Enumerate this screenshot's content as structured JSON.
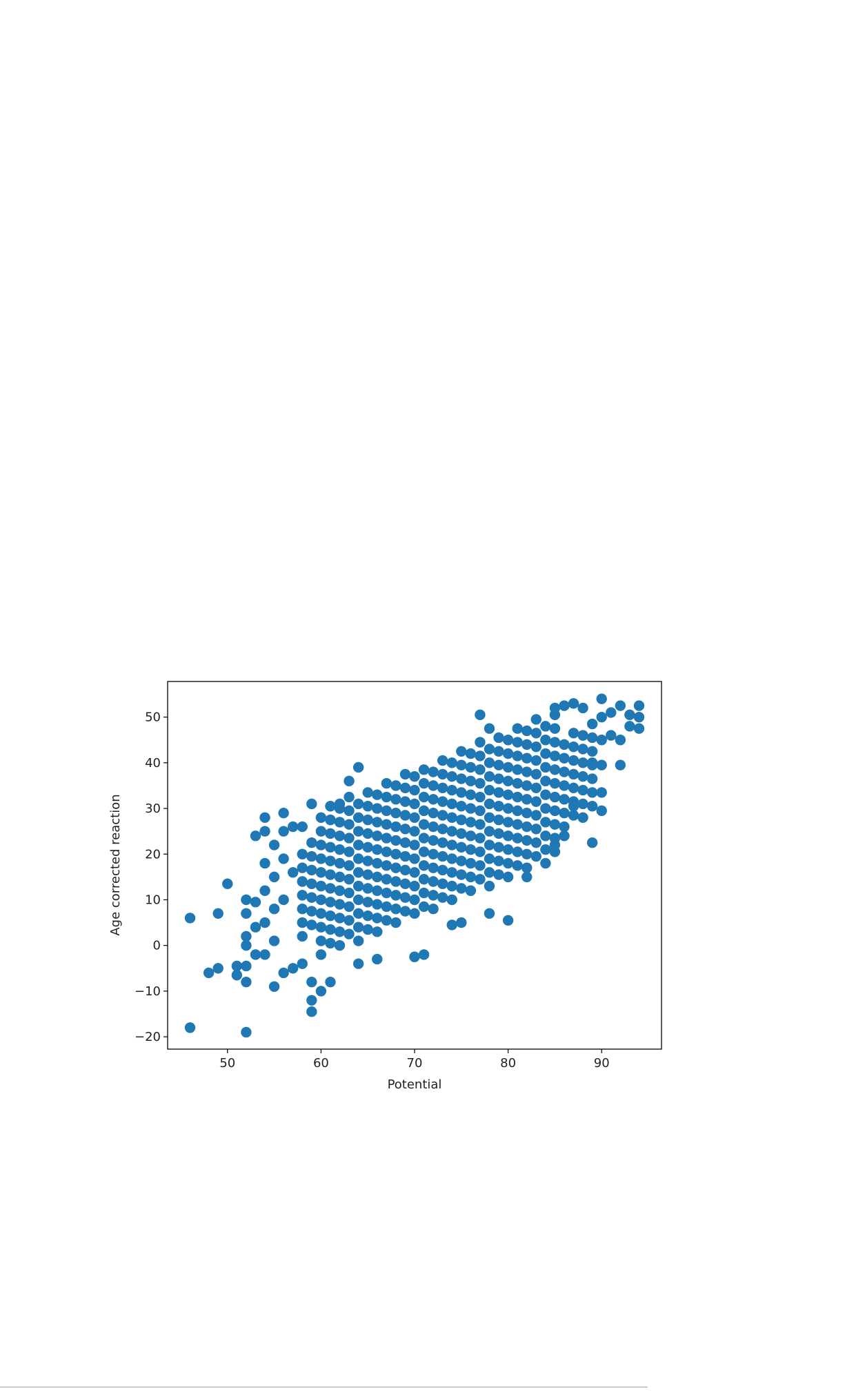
{
  "chart_data": {
    "type": "scatter",
    "xlabel": "Potential",
    "ylabel": "Age corrected reaction",
    "color": "#1f77b4",
    "xlim": [
      43.6,
      96.4
    ],
    "ylim": [
      -22.7,
      57.8
    ],
    "xticks": [
      50,
      60,
      70,
      80,
      90
    ],
    "yticks": [
      {
        "value": -20,
        "label": "−20"
      },
      {
        "value": -10,
        "label": "−10"
      },
      0,
      10,
      20,
      30,
      40,
      50
    ],
    "x": [
      58,
      58,
      58,
      58,
      58,
      58,
      58,
      59,
      59,
      59,
      59,
      59,
      59,
      59,
      60,
      60,
      60,
      60,
      60,
      60,
      60,
      60,
      60,
      60,
      60,
      61,
      61,
      61,
      61,
      61,
      61,
      61,
      61,
      61,
      61,
      61,
      62,
      62,
      62,
      62,
      62,
      62,
      62,
      62,
      62,
      62,
      62,
      63,
      63,
      63,
      63,
      63,
      63,
      63,
      63,
      63,
      63,
      63,
      64,
      64,
      64,
      64,
      64,
      64,
      64,
      64,
      64,
      64,
      64,
      65,
      65,
      65,
      65,
      65,
      65,
      65,
      65,
      65,
      65,
      65,
      66,
      66,
      66,
      66,
      66,
      66,
      66,
      66,
      66,
      66,
      66,
      67,
      67,
      67,
      67,
      67,
      67,
      67,
      67,
      67,
      67,
      67,
      68,
      68,
      68,
      68,
      68,
      68,
      68,
      68,
      68,
      68,
      68,
      69,
      69,
      69,
      69,
      69,
      69,
      69,
      69,
      69,
      69,
      69,
      70,
      70,
      70,
      70,
      70,
      70,
      70,
      70,
      70,
      70,
      70,
      71,
      71,
      71,
      71,
      71,
      71,
      71,
      71,
      71,
      71,
      71,
      72,
      72,
      72,
      72,
      72,
      72,
      72,
      72,
      72,
      72,
      72,
      73,
      73,
      73,
      73,
      73,
      73,
      73,
      73,
      73,
      73,
      73,
      74,
      74,
      74,
      74,
      74,
      74,
      74,
      74,
      74,
      74,
      74,
      75,
      75,
      75,
      75,
      75,
      75,
      75,
      75,
      75,
      75,
      75,
      76,
      76,
      76,
      76,
      76,
      76,
      76,
      76,
      76,
      76,
      76,
      77,
      77,
      77,
      77,
      77,
      77,
      77,
      77,
      77,
      77,
      77,
      78,
      78,
      78,
      78,
      78,
      78,
      78,
      78,
      78,
      78,
      78,
      79,
      79,
      79,
      79,
      79,
      79,
      79,
      79,
      79,
      79,
      79,
      80,
      80,
      80,
      80,
      80,
      80,
      80,
      80,
      80,
      80,
      80,
      81,
      81,
      81,
      81,
      81,
      81,
      81,
      81,
      81,
      81,
      81,
      82,
      82,
      82,
      82,
      82,
      82,
      82,
      82,
      82,
      82,
      82,
      83,
      83,
      83,
      83,
      83,
      83,
      83,
      83,
      83,
      83,
      83,
      84,
      84,
      84,
      84,
      84,
      84,
      84,
      84,
      84,
      84,
      84,
      85,
      85,
      85,
      85,
      85,
      85,
      85,
      85,
      85,
      85,
      85,
      86,
      86,
      86,
      86,
      86,
      86,
      86,
      87,
      87,
      87,
      87,
      87,
      87,
      87,
      88,
      88,
      88,
      88,
      88,
      88,
      88,
      89,
      89,
      89,
      89,
      89,
      89,
      89,
      46,
      46,
      48,
      49,
      49,
      50,
      51,
      51,
      52,
      52,
      52,
      52,
      52,
      52,
      52,
      53,
      53,
      53,
      53,
      54,
      54,
      54,
      54,
      54,
      54,
      55,
      55,
      55,
      55,
      55,
      56,
      56,
      56,
      56,
      56,
      57,
      57,
      57,
      58,
      58,
      59,
      59,
      59,
      59,
      60,
      61,
      62,
      63,
      64,
      64,
      66,
      70,
      71,
      74,
      75,
      77,
      78,
      78,
      80,
      82,
      85,
      86,
      87,
      89,
      90,
      90,
      90,
      90,
      90,
      90,
      91,
      91,
      92,
      92,
      92,
      93,
      93,
      94,
      94,
      94,
      88,
      87,
      86,
      85,
      89
    ],
    "values": [
      2,
      5,
      8,
      11,
      14,
      17,
      20,
      4.5,
      7.5,
      10.5,
      13.5,
      16.5,
      19.5,
      22.5,
      -2,
      1,
      4,
      7,
      10,
      13,
      16,
      19,
      22,
      25,
      28,
      0.5,
      3.5,
      6.5,
      9.5,
      12.5,
      15.5,
      18.5,
      21.5,
      24.5,
      27.5,
      30.5,
      0,
      3,
      6,
      9,
      12,
      15,
      18,
      21,
      24,
      27,
      30,
      2.5,
      5.5,
      8.5,
      11.5,
      14.5,
      17.5,
      20.5,
      23.5,
      26.5,
      29.5,
      32.5,
      1,
      4,
      7,
      10,
      13,
      16,
      19,
      22,
      25,
      28,
      31,
      3.5,
      6.5,
      9.5,
      12.5,
      15.5,
      18.5,
      21.5,
      24.5,
      27.5,
      30.5,
      33.5,
      3,
      6,
      9,
      12,
      15,
      18,
      21,
      24,
      27,
      30,
      33,
      5.5,
      8.5,
      11.5,
      14.5,
      17.5,
      20.5,
      23.5,
      26.5,
      29.5,
      32.5,
      35.5,
      5,
      8,
      11,
      14,
      17,
      20,
      23,
      26,
      29,
      32,
      35,
      7.5,
      10.5,
      13.5,
      16.5,
      19.5,
      22.5,
      25.5,
      28.5,
      31.5,
      34.5,
      37.5,
      7,
      10,
      13,
      16,
      19,
      22,
      25,
      28,
      31,
      34,
      37,
      8.5,
      11.5,
      14.5,
      17.5,
      20.5,
      23.5,
      26.5,
      29.5,
      32.5,
      35.5,
      38.5,
      8,
      11,
      14,
      17,
      20,
      23,
      26,
      29,
      32,
      35,
      38,
      10.5,
      13.5,
      16.5,
      19.5,
      22.5,
      25.5,
      28.5,
      31.5,
      34.5,
      37.5,
      40.5,
      10,
      13,
      16,
      19,
      22,
      25,
      28,
      31,
      34,
      37,
      40,
      12.5,
      15.5,
      18.5,
      21.5,
      24.5,
      27.5,
      30.5,
      33.5,
      36.5,
      39.5,
      42.5,
      12,
      15,
      18,
      21,
      24,
      27,
      30,
      33,
      36,
      39,
      42,
      14.5,
      17.5,
      20.5,
      23.5,
      26.5,
      29.5,
      32.5,
      35.5,
      38.5,
      41.5,
      44.5,
      13,
      16,
      19,
      22,
      25,
      28,
      31,
      34,
      37,
      40,
      43,
      15.5,
      18.5,
      21.5,
      24.5,
      27.5,
      30.5,
      33.5,
      36.5,
      39.5,
      42.5,
      45.5,
      15,
      18,
      21,
      24,
      27,
      30,
      33,
      36,
      39,
      42,
      45,
      17.5,
      20.5,
      23.5,
      26.5,
      29.5,
      32.5,
      35.5,
      38.5,
      41.5,
      44.5,
      47.5,
      17,
      20,
      23,
      26,
      29,
      32,
      35,
      38,
      41,
      44,
      47,
      19.5,
      22.5,
      25.5,
      28.5,
      31.5,
      34.5,
      37.5,
      40.5,
      43.5,
      46.5,
      49.5,
      18,
      21,
      24,
      27,
      30,
      33,
      36,
      39,
      42,
      45,
      48,
      20.5,
      23.5,
      26.5,
      29.5,
      32.5,
      35.5,
      38.5,
      41.5,
      44.5,
      47.5,
      50.5,
      26,
      29,
      32,
      35,
      38,
      41,
      44,
      28.5,
      31.5,
      34.5,
      37.5,
      40.5,
      43.5,
      46.5,
      28,
      31,
      34,
      37,
      40,
      43,
      46,
      30.5,
      33.5,
      36.5,
      39.5,
      42.5,
      45.5,
      48.5,
      6,
      -18,
      -6,
      7,
      -5,
      13.5,
      -4.5,
      -6.5,
      -19,
      10,
      7,
      2,
      0,
      -4.5,
      -8,
      24,
      9.5,
      4,
      -2,
      28,
      25,
      18,
      12,
      5,
      -2,
      -9,
      22,
      15,
      8,
      1,
      29,
      -6,
      25,
      19,
      10,
      26,
      -5,
      16,
      26,
      -4,
      -12,
      -14.5,
      31,
      -8,
      -10,
      -8,
      31,
      36,
      39,
      -4,
      -3,
      -2.5,
      -2,
      4.5,
      5,
      50.5,
      47.5,
      7,
      5.5,
      15,
      22,
      24,
      30.5,
      22.5,
      29.5,
      33.5,
      39.5,
      45,
      50,
      54,
      46,
      51,
      39.5,
      45,
      52.5,
      50.5,
      48,
      52.5,
      50,
      47.5,
      52,
      53,
      52.5,
      52,
      40
    ]
  }
}
